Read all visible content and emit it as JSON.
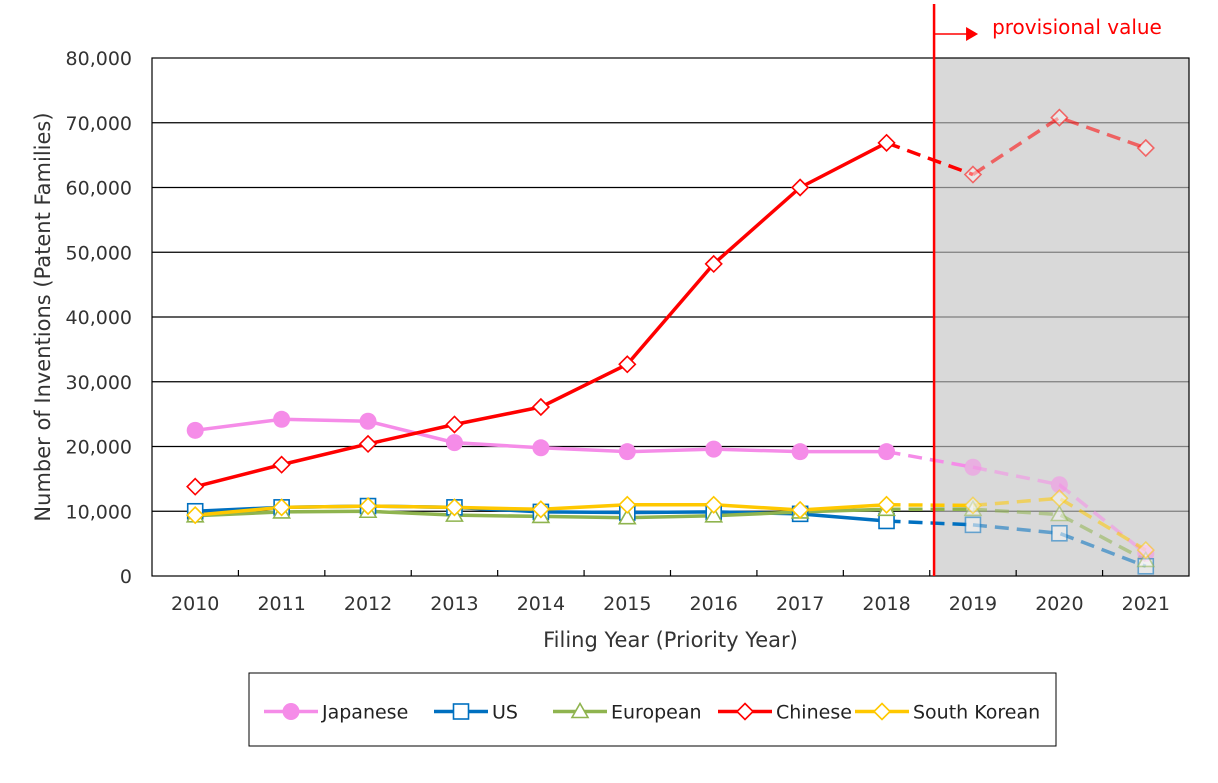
{
  "chart_data": {
    "type": "line",
    "title": "",
    "xlabel": "Filing Year (Priority Year)",
    "ylabel": "Number of Inventions (Patent Families)",
    "x": [
      "2010",
      "2011",
      "2012",
      "2013",
      "2014",
      "2015",
      "2016",
      "2017",
      "2018",
      "2019",
      "2020",
      "2021"
    ],
    "ylim": [
      0,
      80000
    ],
    "yticks": [
      0,
      10000,
      20000,
      30000,
      40000,
      50000,
      60000,
      70000,
      80000
    ],
    "ytick_labels": [
      "0",
      "10,000",
      "20,000",
      "30,000",
      "40,000",
      "50,000",
      "60,000",
      "70,000",
      "80,000"
    ],
    "grid": true,
    "provisional_from": "2019",
    "annotation": "provisional value",
    "legend_position": "bottom",
    "series": [
      {
        "name": "Japanese",
        "color": "#f58ce8",
        "marker": "circle",
        "values": [
          22500,
          24200,
          23900,
          20600,
          19800,
          19200,
          19600,
          19200,
          19200,
          16800,
          14100,
          3500
        ]
      },
      {
        "name": "US",
        "color": "#0070c0",
        "marker": "square",
        "values": [
          10000,
          10600,
          10800,
          10600,
          9900,
          9800,
          9900,
          9600,
          8500,
          7900,
          6600,
          1500
        ]
      },
      {
        "name": "European",
        "color": "#8fb44f",
        "marker": "triangle",
        "values": [
          9300,
          9900,
          10000,
          9400,
          9200,
          9000,
          9300,
          9900,
          10300,
          10300,
          9500,
          2400
        ]
      },
      {
        "name": "Chinese",
        "color": "#ff0000",
        "marker": "diamond",
        "values": [
          13800,
          17200,
          20400,
          23400,
          26100,
          32700,
          48200,
          60000,
          66900,
          62000,
          70800,
          66100
        ]
      },
      {
        "name": "South Korean",
        "color": "#ffc800",
        "marker": "diamond",
        "values": [
          9400,
          10600,
          10800,
          10600,
          10300,
          11000,
          11000,
          10200,
          11000,
          10900,
          12000,
          4000
        ]
      }
    ]
  }
}
